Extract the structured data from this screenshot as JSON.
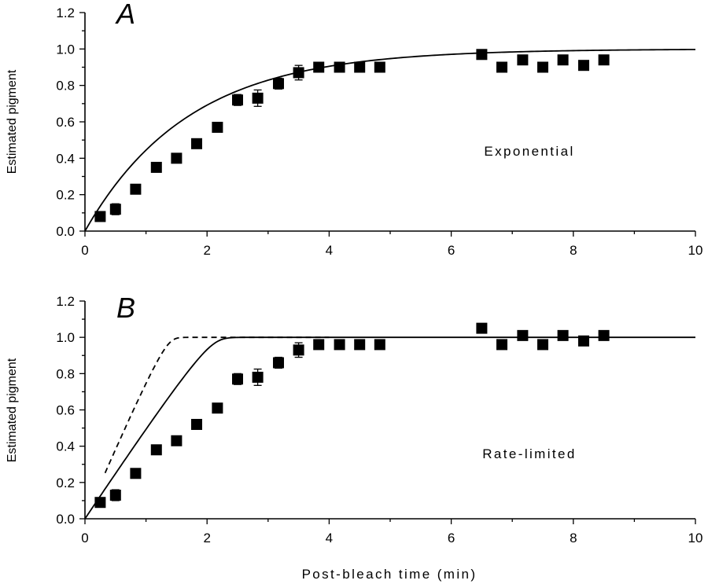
{
  "xlabel": "Post-bleach time (min)",
  "chart_data": [
    {
      "type": "scatter",
      "panel_label": "A",
      "annotation": "Exponential",
      "ylabel": "Estimated pigment",
      "xlim": [
        0,
        10
      ],
      "ylim": [
        0,
        1.2
      ],
      "xticks": [
        "0",
        "2",
        "4",
        "6",
        "8",
        "10"
      ],
      "yticks": [
        "0.0",
        "0.2",
        "0.4",
        "0.6",
        "0.8",
        "1.0",
        "1.2"
      ],
      "series": [
        {
          "marker": "filled-square",
          "x": [
            0.25,
            0.5,
            0.83,
            1.17,
            1.5,
            1.83,
            2.17,
            2.5,
            2.83,
            3.17,
            3.5,
            3.83,
            4.17,
            4.5,
            4.83,
            6.5,
            6.83,
            7.17,
            7.5,
            7.83,
            8.17,
            8.5
          ],
          "y": [
            0.08,
            0.12,
            0.23,
            0.35,
            0.4,
            0.48,
            0.57,
            0.72,
            0.73,
            0.81,
            0.87,
            0.9,
            0.9,
            0.9,
            0.9,
            0.97,
            0.9,
            0.94,
            0.9,
            0.94,
            0.91,
            0.94
          ],
          "error": [
            0.02,
            0.03,
            0.02,
            0.02,
            0.02,
            0.02,
            0.02,
            0.03,
            0.045,
            0.03,
            0.04,
            0.02,
            0.02,
            0.02,
            0.02,
            0.025,
            0.02,
            0.02,
            0.02,
            0.02,
            0.02,
            0.025
          ]
        }
      ],
      "fits": [
        {
          "style": "solid",
          "kind": "exponential",
          "tau": 1.7,
          "plateau": 1.0,
          "x_end": 10
        }
      ]
    },
    {
      "type": "scatter",
      "panel_label": "B",
      "annotation": "Rate-limited",
      "ylabel": "Estimated pigment",
      "xlim": [
        0,
        10
      ],
      "ylim": [
        0,
        1.2
      ],
      "xticks": [
        "0",
        "2",
        "4",
        "6",
        "8",
        "10"
      ],
      "yticks": [
        "0.0",
        "0.2",
        "0.4",
        "0.6",
        "0.8",
        "1.0",
        "1.2"
      ],
      "series": [
        {
          "marker": "filled-square",
          "x": [
            0.25,
            0.5,
            0.83,
            1.17,
            1.5,
            1.83,
            2.17,
            2.5,
            2.83,
            3.17,
            3.5,
            3.83,
            4.17,
            4.5,
            4.83,
            6.5,
            6.83,
            7.17,
            7.5,
            7.83,
            8.17,
            8.5
          ],
          "y": [
            0.09,
            0.13,
            0.25,
            0.38,
            0.43,
            0.52,
            0.61,
            0.77,
            0.78,
            0.86,
            0.93,
            0.96,
            0.96,
            0.96,
            0.96,
            1.05,
            0.96,
            1.01,
            0.96,
            1.01,
            0.98,
            1.01
          ],
          "error": [
            0.02,
            0.03,
            0.02,
            0.02,
            0.02,
            0.02,
            0.02,
            0.03,
            0.045,
            0.03,
            0.04,
            0.02,
            0.02,
            0.02,
            0.02,
            0.025,
            0.02,
            0.02,
            0.02,
            0.02,
            0.02,
            0.025
          ]
        }
      ],
      "fits": [
        {
          "style": "solid",
          "kind": "rate-limited",
          "rate": 0.52,
          "K": 0.04,
          "plateau": 1.0,
          "x_end": 10
        },
        {
          "style": "dashed",
          "kind": "rate-limited",
          "rate": 0.8,
          "K": 0.04,
          "plateau": 1.0,
          "x_start": 0.33,
          "x_end": 4.0
        }
      ]
    }
  ]
}
